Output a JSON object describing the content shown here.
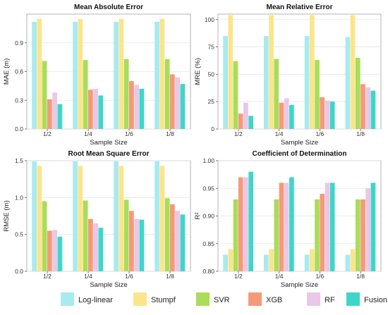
{
  "legend": [
    {
      "name": "Log-linear",
      "color": "#a8eaf0"
    },
    {
      "name": "Stumpf",
      "color": "#fbe58a"
    },
    {
      "name": "SVR",
      "color": "#a9dd5a"
    },
    {
      "name": "XGB",
      "color": "#f59a78"
    },
    {
      "name": "RF",
      "color": "#e9c7e7"
    },
    {
      "name": "Fusion",
      "color": "#3fd6c8"
    }
  ],
  "chart_data": [
    {
      "type": "bar",
      "title": "Mean Absolute Error",
      "xlabel": "Sample Size",
      "ylabel": "MAE (m)",
      "categories": [
        "1/2",
        "1/4",
        "1/6",
        "1/8"
      ],
      "ylim": [
        0,
        1.2
      ],
      "yticks": [
        0.0,
        0.3,
        0.6,
        0.9
      ],
      "tick_decimals": 1,
      "series": [
        {
          "name": "Log-linear",
          "values": [
            1.12,
            1.12,
            1.12,
            1.12
          ]
        },
        {
          "name": "Stumpf",
          "values": [
            1.15,
            1.15,
            1.15,
            1.15
          ]
        },
        {
          "name": "SVR",
          "values": [
            0.71,
            0.72,
            0.73,
            0.73
          ]
        },
        {
          "name": "XGB",
          "values": [
            0.31,
            0.41,
            0.5,
            0.57
          ]
        },
        {
          "name": "RF",
          "values": [
            0.38,
            0.42,
            0.46,
            0.54
          ]
        },
        {
          "name": "Fusion",
          "values": [
            0.26,
            0.35,
            0.42,
            0.47
          ]
        }
      ]
    },
    {
      "type": "bar",
      "title": "Mean Relative Error",
      "xlabel": "Sample Size",
      "ylabel": "MRE (%)",
      "categories": [
        "1/2",
        "1/4",
        "1/6",
        "1/8"
      ],
      "ylim": [
        0,
        105
      ],
      "yticks": [
        0,
        25,
        50,
        75,
        100
      ],
      "tick_decimals": 0,
      "series": [
        {
          "name": "Log-linear",
          "values": [
            85,
            85,
            85,
            84
          ]
        },
        {
          "name": "Stumpf",
          "values": [
            104,
            104,
            104,
            104
          ]
        },
        {
          "name": "SVR",
          "values": [
            62,
            64,
            63,
            65
          ]
        },
        {
          "name": "XGB",
          "values": [
            14,
            24,
            29,
            41
          ]
        },
        {
          "name": "RF",
          "values": [
            24,
            28,
            26,
            38
          ]
        },
        {
          "name": "Fusion",
          "values": [
            12,
            22,
            25,
            35
          ]
        }
      ]
    },
    {
      "type": "bar",
      "title": "Root Mean Square Error",
      "xlabel": "Sample Size",
      "ylabel": "RMSE (m)",
      "categories": [
        "1/2",
        "1/4",
        "1/6",
        "1/8"
      ],
      "ylim": [
        0,
        1.5
      ],
      "yticks": [
        0.0,
        0.5,
        1.0,
        1.5
      ],
      "tick_decimals": 1,
      "series": [
        {
          "name": "Log-linear",
          "values": [
            1.49,
            1.49,
            1.49,
            1.49
          ]
        },
        {
          "name": "Stumpf",
          "values": [
            1.43,
            1.43,
            1.43,
            1.43
          ]
        },
        {
          "name": "SVR",
          "values": [
            0.95,
            0.96,
            0.97,
            0.99
          ]
        },
        {
          "name": "XGB",
          "values": [
            0.55,
            0.71,
            0.82,
            0.91
          ]
        },
        {
          "name": "RF",
          "values": [
            0.56,
            0.65,
            0.71,
            0.82
          ]
        },
        {
          "name": "Fusion",
          "values": [
            0.47,
            0.59,
            0.7,
            0.77
          ]
        }
      ]
    },
    {
      "type": "bar",
      "title": "Coefficient of Determination",
      "xlabel": "Sample Size",
      "ylabel": "R²",
      "categories": [
        "1/2",
        "1/4",
        "1/6",
        "1/8"
      ],
      "ylim": [
        0.8,
        1.0
      ],
      "yticks": [
        0.8,
        0.85,
        0.9,
        0.95,
        1.0
      ],
      "tick_decimals": 2,
      "series": [
        {
          "name": "Log-linear",
          "values": [
            0.83,
            0.83,
            0.83,
            0.83
          ]
        },
        {
          "name": "Stumpf",
          "values": [
            0.84,
            0.84,
            0.84,
            0.84
          ]
        },
        {
          "name": "SVR",
          "values": [
            0.93,
            0.93,
            0.93,
            0.93
          ]
        },
        {
          "name": "XGB",
          "values": [
            0.97,
            0.96,
            0.94,
            0.93
          ]
        },
        {
          "name": "RF",
          "values": [
            0.97,
            0.96,
            0.96,
            0.95
          ]
        },
        {
          "name": "Fusion",
          "values": [
            0.98,
            0.97,
            0.96,
            0.96
          ]
        }
      ]
    }
  ]
}
